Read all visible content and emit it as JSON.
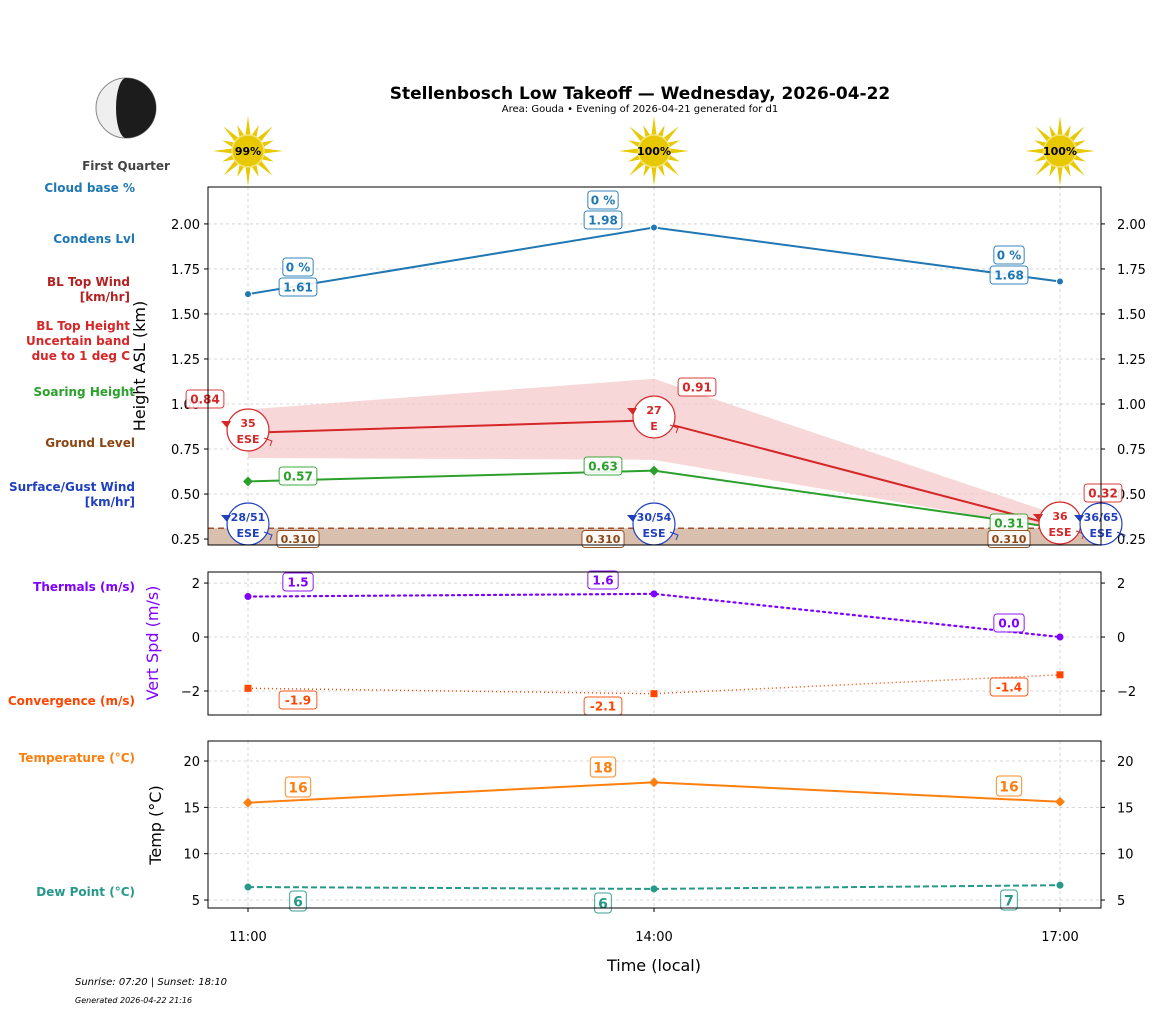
{
  "title": "Stellenbosch Low Takeoff — Wednesday, 2026-04-22",
  "subtitle": "Area: Gouda • Evening of 2026-04-21 generated for d1",
  "moon": {
    "phase_label": "First Quarter"
  },
  "sunshine": [
    "99%",
    "100%",
    "100%"
  ],
  "left_labels": {
    "cloud_base": "Cloud base %",
    "condens": "Condens Lvl",
    "bl_wind_1": "BL Top Wind",
    "bl_wind_2": "[km/hr]",
    "bl_top_1": "BL Top Height",
    "bl_top_2": "Uncertain band",
    "bl_top_3": "due to 1 deg C",
    "soaring": "Soaring Height",
    "ground": "Ground Level",
    "surface_1": "Surface/Gust Wind",
    "surface_2": "[km/hr]",
    "thermals": "Thermals (m/s)",
    "convergence": "Convergence (m/s)",
    "temperature": "Temperature (°C)",
    "dewpoint": "Dew Point (°C)"
  },
  "footer": {
    "sun": "Sunrise: 07:20 | Sunset: 18:10",
    "generated": "Generated 2026-04-22 21:16"
  },
  "colors": {
    "cloud": "#1f77b4",
    "bl_top": "#d62728",
    "band": "#f5c6c9",
    "soaring": "#2ca02c",
    "ground": "#8b4513",
    "ground_fill": "#d9bfae",
    "surface": "#1f3fbf",
    "thermals": "#7f00ff",
    "convergence": "#ff4500",
    "temperature": "#ff7f0e",
    "dewpoint": "#26998a"
  },
  "chart_data": [
    {
      "type": "line",
      "ylabel": "Height ASL (km)",
      "ylim": [
        0.217,
        2.205
      ],
      "yticks": [
        "0.25",
        "0.50",
        "0.75",
        "1.00",
        "1.25",
        "1.50",
        "1.75",
        "2.00"
      ],
      "x": [
        "11:00",
        "14:00",
        "17:00"
      ],
      "grid": true,
      "series": [
        {
          "name": "Condens Lvl",
          "values": [
            1.61,
            1.98,
            1.68
          ],
          "labels": [
            "1.61",
            "1.98",
            "1.68"
          ],
          "cloud_pct": [
            "0 %",
            "0 %",
            "0 %"
          ]
        },
        {
          "name": "BL Top Height",
          "values": [
            0.84,
            0.91,
            0.32
          ],
          "labels": [
            "0.84",
            "0.91",
            "0.32"
          ],
          "band_low": [
            0.7,
            0.69,
            0.3
          ],
          "band_high": [
            0.97,
            1.14,
            0.38
          ]
        },
        {
          "name": "Soaring Height",
          "values": [
            0.57,
            0.63,
            0.31
          ],
          "labels": [
            "0.57",
            "0.63",
            "0.31"
          ]
        },
        {
          "name": "Ground Level",
          "values": [
            0.31,
            0.31,
            0.31
          ],
          "labels": [
            "0.310",
            "0.310",
            "0.310"
          ]
        }
      ],
      "bl_wind": [
        {
          "speed": "35",
          "dir": "ESE"
        },
        {
          "speed": "27",
          "dir": "E"
        },
        {
          "speed": "36",
          "dir": "ESE"
        }
      ],
      "surface_wind": [
        {
          "speed": "28/51",
          "dir": "ESE"
        },
        {
          "speed": "30/54",
          "dir": "ESE"
        },
        {
          "speed": "36/65",
          "dir": "ESE"
        }
      ]
    },
    {
      "type": "line",
      "ylabel": "Vert Spd (m/s)",
      "ylim": [
        -2.89,
        2.41
      ],
      "yticks": [
        "−2",
        "0",
        "2"
      ],
      "x": [
        "11:00",
        "14:00",
        "17:00"
      ],
      "grid": true,
      "series": [
        {
          "name": "Thermals (m/s)",
          "values": [
            1.5,
            1.6,
            0.0
          ],
          "labels": [
            "1.5",
            "1.6",
            "0.0"
          ]
        },
        {
          "name": "Convergence (m/s)",
          "values": [
            -1.9,
            -2.1,
            -1.4
          ],
          "labels": [
            "-1.9",
            "-2.1",
            "-1.4"
          ]
        }
      ]
    },
    {
      "type": "line",
      "ylabel": "Temp (°C)",
      "xlabel": "Time (local)",
      "ylim": [
        4.14,
        22.16
      ],
      "yticks": [
        "5",
        "10",
        "15",
        "20"
      ],
      "x": [
        "11:00",
        "14:00",
        "17:00"
      ],
      "grid": true,
      "series": [
        {
          "name": "Temperature (°C)",
          "values": [
            15.5,
            17.7,
            15.6
          ],
          "labels": [
            "16",
            "18",
            "16"
          ]
        },
        {
          "name": "Dew Point (°C)",
          "values": [
            6.4,
            6.2,
            6.6
          ],
          "labels": [
            "6",
            "6",
            "7"
          ]
        }
      ]
    }
  ]
}
